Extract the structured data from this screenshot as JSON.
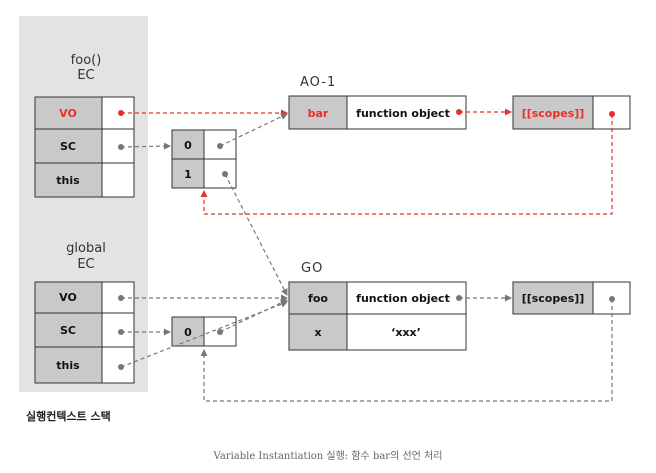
{
  "colors": {
    "panel": "#e3e3e3",
    "cell_gray": "#c9c9c9",
    "border": "#333333",
    "arrow_gray": "#777777",
    "highlight_red": "#e8302a"
  },
  "foo_ec": {
    "title_line1": "foo()",
    "title_line2": "EC",
    "rows": [
      "VO",
      "SC",
      "this"
    ]
  },
  "global_ec": {
    "title_line1": "global",
    "title_line2": "EC",
    "rows": [
      "VO",
      "SC",
      "this"
    ]
  },
  "foo_scope_chain": [
    "0",
    "1"
  ],
  "global_scope_chain": [
    "0"
  ],
  "ao1": {
    "title": "AO-1",
    "key": "bar",
    "value": "function object"
  },
  "ao1_scopes": "[[scopes]]",
  "go": {
    "title": "GO",
    "rows": [
      {
        "key": "foo",
        "value": "function object"
      },
      {
        "key": "x",
        "value": "‘xxx’"
      }
    ]
  },
  "go_scopes": "[[scopes]]",
  "stack_label": "실행컨텍스트 스택",
  "caption": "Variable Instantiation 실행: 함수 bar의 선언 처리"
}
